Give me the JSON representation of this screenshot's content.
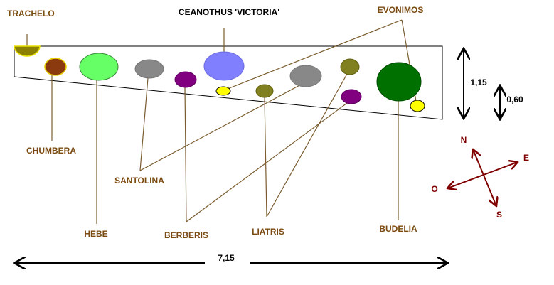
{
  "plants": {
    "trachelo": "TRACHELO",
    "ceanothus": "CEANOTHUS 'VICTORIA'",
    "evonimos": "EVONIMOS",
    "chumbera": "CHUMBERA",
    "santolina": "SANTOLINA",
    "hebe": "HEBE",
    "berberis": "BERBERIS",
    "liatris": "LIATRIS",
    "budelia": "BUDELIA"
  },
  "dimensions": {
    "length": "7,15",
    "width_max": "1,15",
    "width_min": "0,60"
  },
  "compass": {
    "north": "N",
    "east": "E",
    "south": "S",
    "west": "O"
  }
}
